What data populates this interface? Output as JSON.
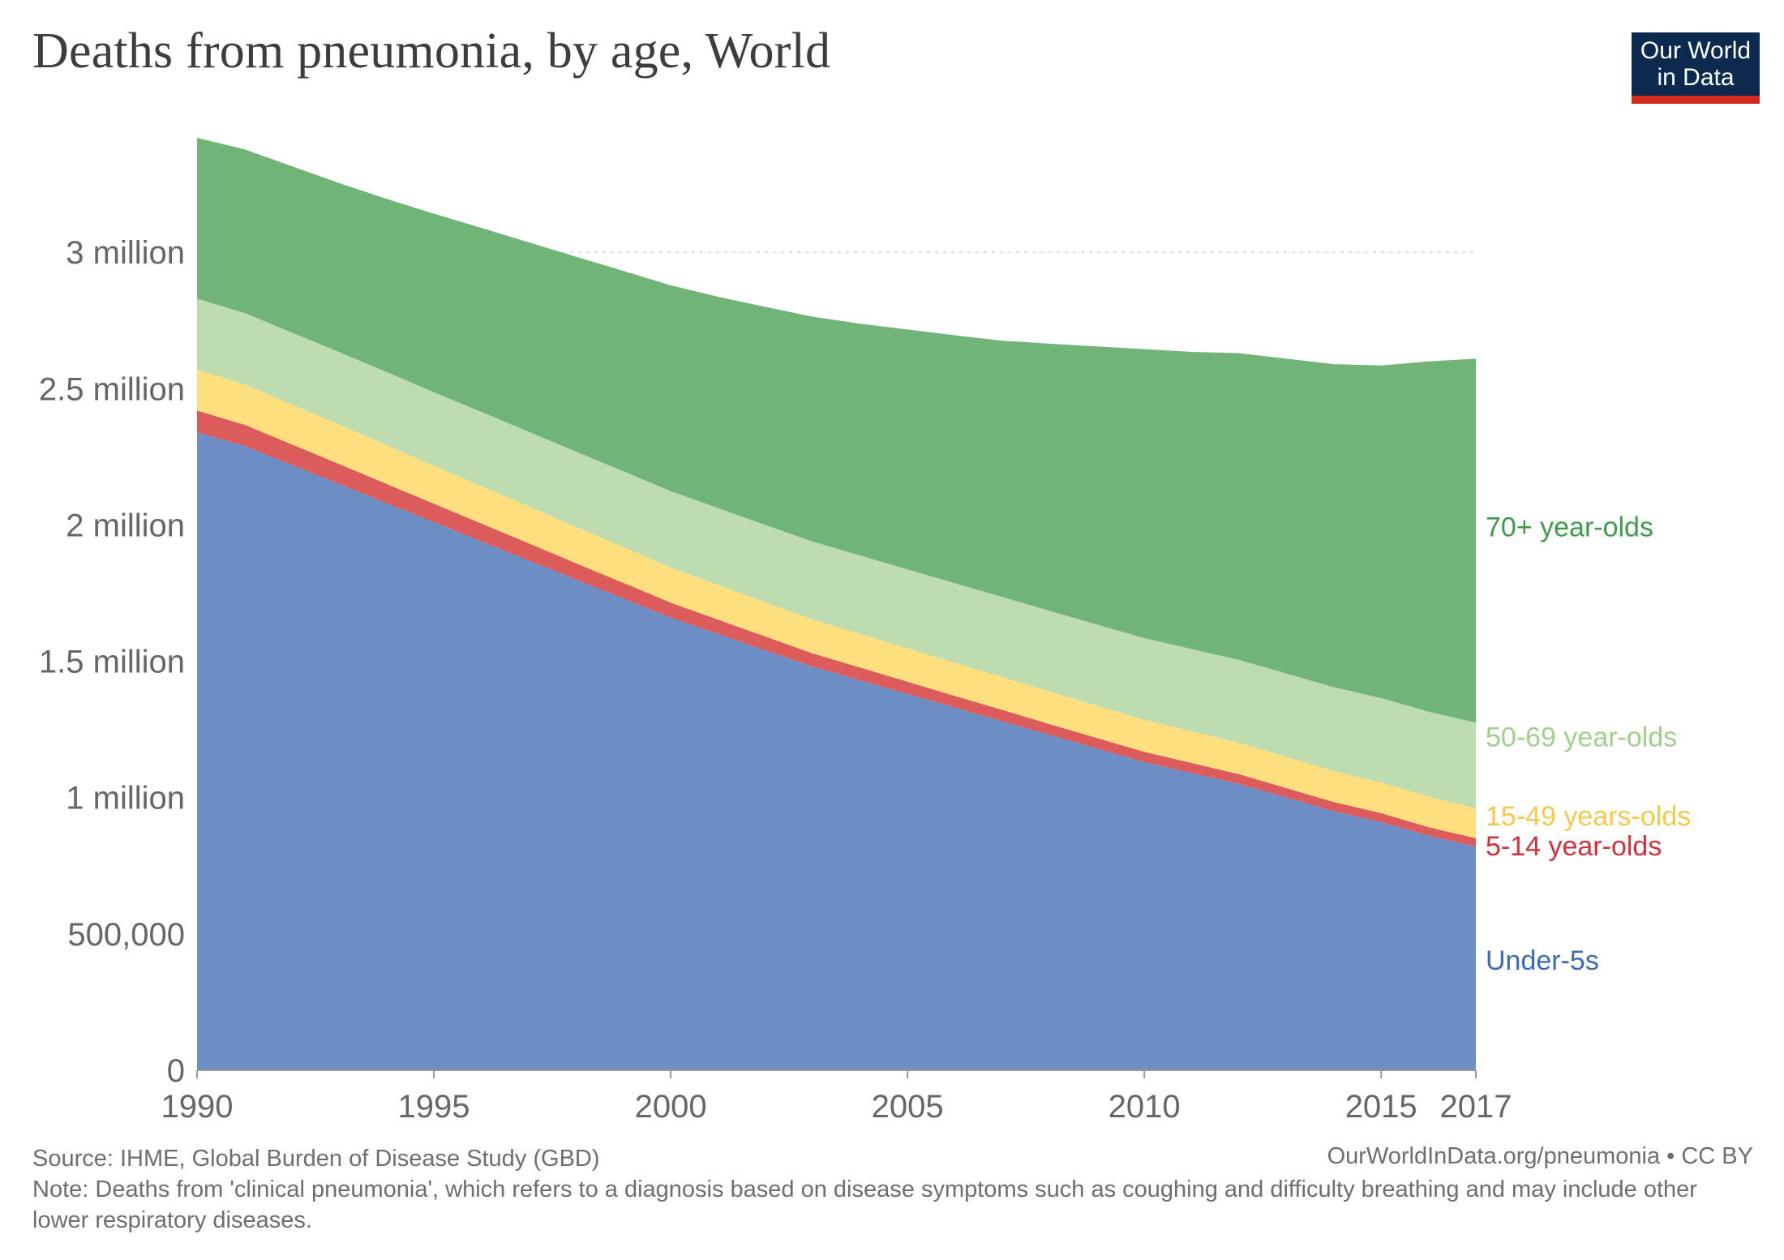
{
  "header": {
    "title": "Deaths from pneumonia, by age, World",
    "logo_line1": "Our World",
    "logo_line2": "in Data"
  },
  "footer": {
    "source": "Source: IHME, Global Burden of Disease Study (GBD)",
    "credit": "OurWorldInData.org/pneumonia • CC BY",
    "note": "Note: Deaths from 'clinical pneumonia', which refers to a diagnosis based on disease symptoms such as coughing and difficulty breathing and may include other lower respiratory diseases."
  },
  "chart_data": {
    "type": "area",
    "stacked": true,
    "title": "Deaths from pneumonia, by age, World",
    "xlabel": "",
    "ylabel": "",
    "xlim": [
      1990,
      2017
    ],
    "ylim": [
      0,
      3420000
    ],
    "grid": true,
    "x_ticks": [
      1990,
      1995,
      2000,
      2005,
      2010,
      2015,
      2017
    ],
    "x_tick_labels": [
      "1990",
      "1995",
      "2000",
      "2005",
      "2010",
      "2015",
      "2017"
    ],
    "y_ticks": [
      0,
      500000,
      1000000,
      1500000,
      2000000,
      2500000,
      3000000
    ],
    "y_tick_labels": [
      "0",
      "500,000",
      "1 million",
      "1.5 million",
      "2 million",
      "2.5 million",
      "3 million"
    ],
    "x": [
      1990,
      1991,
      1992,
      1993,
      1994,
      1995,
      1996,
      1997,
      1998,
      1999,
      2000,
      2001,
      2002,
      2003,
      2004,
      2005,
      2006,
      2007,
      2008,
      2009,
      2010,
      2011,
      2012,
      2013,
      2014,
      2015,
      2016,
      2017
    ],
    "series": [
      {
        "name": "Under-5s",
        "color": "#6d8ec4",
        "values": [
          2340000,
          2290000,
          2220000,
          2150000,
          2080000,
          2010000,
          1940000,
          1870000,
          1800000,
          1730000,
          1660000,
          1600000,
          1540000,
          1480000,
          1430000,
          1380000,
          1330000,
          1280000,
          1230000,
          1180000,
          1130000,
          1090000,
          1050000,
          1000000,
          950000,
          910000,
          860000,
          820000
        ]
      },
      {
        "name": "5-14 year-olds",
        "color": "#dc5c5c",
        "values": [
          80000,
          78000,
          76000,
          74000,
          71000,
          68000,
          66000,
          63000,
          60000,
          58000,
          55000,
          53000,
          51000,
          49000,
          47000,
          45000,
          43000,
          42000,
          40000,
          39000,
          38000,
          37000,
          36000,
          35000,
          34000,
          33000,
          32000,
          31000
        ]
      },
      {
        "name": "15-49 years-olds",
        "color": "#fde07d",
        "values": [
          150000,
          148000,
          146000,
          144000,
          142000,
          139000,
          137000,
          135000,
          133000,
          131000,
          129000,
          127000,
          125000,
          124000,
          123000,
          122000,
          121000,
          120000,
          119000,
          118000,
          117000,
          116000,
          115000,
          114000,
          113000,
          112000,
          111000,
          110000
        ]
      },
      {
        "name": "50-69 year-olds",
        "color": "#bddcb0",
        "values": [
          260000,
          262000,
          264000,
          266000,
          268000,
          270000,
          272000,
          274000,
          276000,
          278000,
          280000,
          282000,
          284000,
          286000,
          288000,
          290000,
          292000,
          294000,
          296000,
          298000,
          300000,
          302000,
          304000,
          306000,
          308000,
          310000,
          312000,
          314000
        ]
      },
      {
        "name": "70+ year-olds",
        "color": "#70b577",
        "values": [
          590000,
          600000,
          610000,
          620000,
          635000,
          655000,
          675000,
          695000,
          715000,
          735000,
          755000,
          775000,
          800000,
          825000,
          850000,
          880000,
          910000,
          940000,
          980000,
          1020000,
          1060000,
          1090000,
          1125000,
          1155000,
          1185000,
          1220000,
          1285000,
          1335000
        ]
      }
    ],
    "labels": [
      {
        "text": "70+ year-olds",
        "color": "#3f9b48",
        "value": 2000000
      },
      {
        "text": "50-69 year-olds",
        "color": "#9fd08e",
        "value": 1230000
      },
      {
        "text": "15-49 years-olds",
        "color": "#f7c94b",
        "value": 940000
      },
      {
        "text": "5-14 year-olds",
        "color": "#d2313a",
        "value": 830000
      },
      {
        "text": "Under-5s",
        "color": "#3d6bb3",
        "value": 410000
      }
    ]
  }
}
